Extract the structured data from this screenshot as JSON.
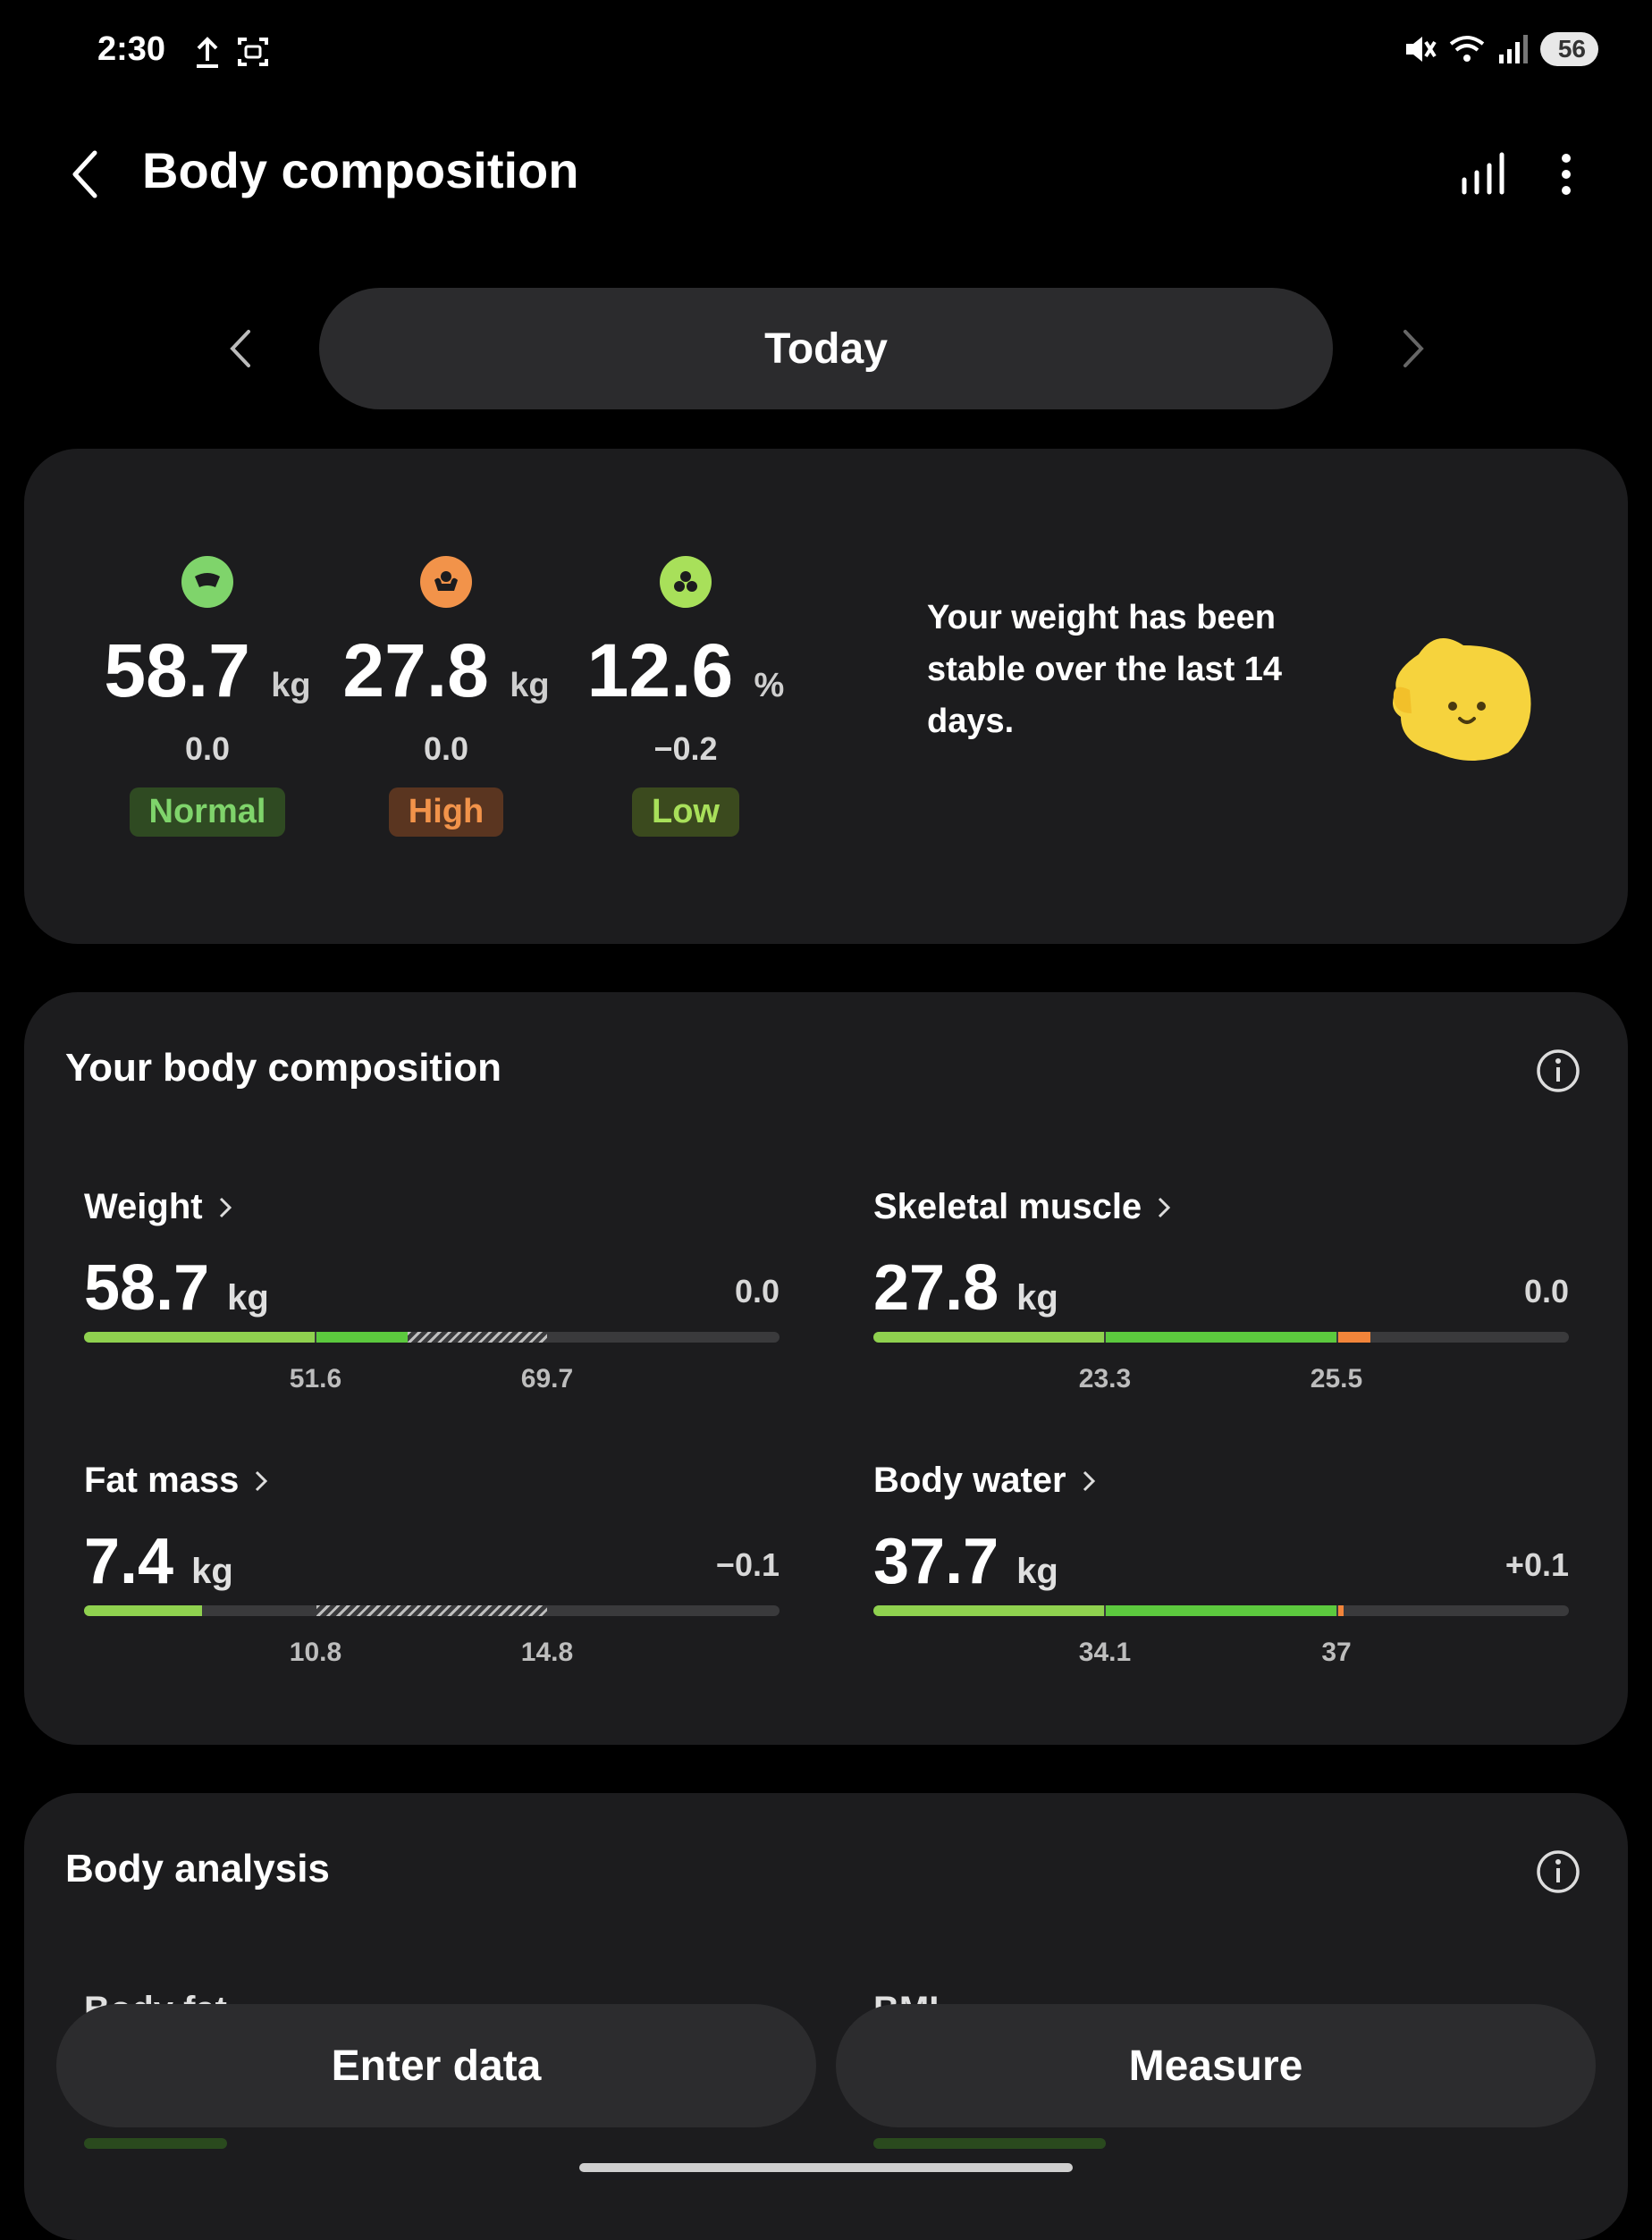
{
  "status_bar": {
    "time": "2:30",
    "battery": "56"
  },
  "header": {
    "title": "Body composition"
  },
  "date_nav": {
    "label": "Today"
  },
  "summary": {
    "stats": [
      {
        "value": "58.7",
        "unit": "kg",
        "delta": "0.0",
        "status": "Normal",
        "color": "#7fd46b"
      },
      {
        "value": "27.8",
        "unit": "kg",
        "delta": "0.0",
        "status": "High",
        "color": "#f2934a"
      },
      {
        "value": "12.6",
        "unit": "%",
        "delta": "−0.2",
        "status": "Low",
        "color": "#a8e05a"
      }
    ],
    "message": "Your weight has been stable over the last 14 days."
  },
  "composition": {
    "title": "Your body composition",
    "metrics": [
      {
        "label": "Weight",
        "value": "58.7",
        "unit": "kg",
        "delta": "0.0",
        "low": "51.6",
        "high": "69.7"
      },
      {
        "label": "Skeletal muscle",
        "value": "27.8",
        "unit": "kg",
        "delta": "0.0",
        "low": "23.3",
        "high": "25.5"
      },
      {
        "label": "Fat mass",
        "value": "7.4",
        "unit": "kg",
        "delta": "−0.1",
        "low": "10.8",
        "high": "14.8"
      },
      {
        "label": "Body water",
        "value": "37.7",
        "unit": "kg",
        "delta": "+0.1",
        "low": "34.1",
        "high": "37"
      }
    ]
  },
  "analysis": {
    "title": "Body analysis",
    "items": [
      "Body fat",
      "BMI"
    ]
  },
  "actions": {
    "enter_data": "Enter data",
    "measure": "Measure"
  }
}
